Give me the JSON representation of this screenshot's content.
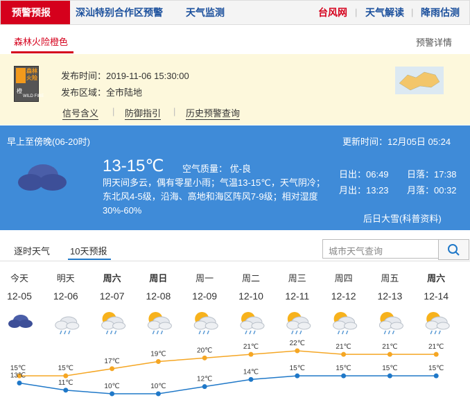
{
  "nav": {
    "tabs": [
      "预警预报",
      "深汕特别合作区预警",
      "天气监测"
    ],
    "links": [
      "台风网",
      "天气解读",
      "降雨估测"
    ]
  },
  "alert": {
    "tab": "森林火险橙色",
    "detail": "预警详情",
    "icon": {
      "title": "森林火险",
      "level": "橙",
      "en": "WILD FIRE"
    },
    "time": "发布时间：2019-11-06 15:30:00",
    "area": "发布区域：全市陆地",
    "links": [
      "信号含义",
      "防御指引",
      "历史预警查询"
    ]
  },
  "today": {
    "period": "早上至傍晚(06-20时)",
    "updated": "更新时间：12月05日 05:24",
    "temp": "13-15℃",
    "air": "空气质量： 优-良",
    "desc": "阴天间多云，偶有零星小雨；气温13-15℃，天气阴冷；东北风4-5级，沿海、高地和海区阵风7-9级；相对湿度30%-60%",
    "sunrise": "日出：06:49",
    "sunset": "日落：17:38",
    "moonrise": "月出：13:23",
    "moonset": "月落：00:32",
    "solar_term": "后日大雪(科普资料)"
  },
  "forecast": {
    "tabs": [
      "逐时天气",
      "10天预报"
    ],
    "search_placeholder": "城市天气查询",
    "weekdays": [
      "今天",
      "明天",
      "周六",
      "周日",
      "周一",
      "周二",
      "周三",
      "周四",
      "周五",
      "周六"
    ],
    "dates": [
      "12-05",
      "12-06",
      "12-07",
      "12-08",
      "12-09",
      "12-10",
      "12-11",
      "12-12",
      "12-13",
      "12-14"
    ]
  },
  "chart_data": {
    "type": "line",
    "categories": [
      "12-05",
      "12-06",
      "12-07",
      "12-08",
      "12-09",
      "12-10",
      "12-11",
      "12-12",
      "12-13",
      "12-14"
    ],
    "series": [
      {
        "color": "#f5a623",
        "values": [
          15,
          15,
          17,
          19,
          20,
          21,
          22,
          21,
          21,
          21
        ],
        "value_labels": [
          "15℃",
          "15℃",
          "17℃",
          "19℃",
          "20℃",
          "21℃",
          "22℃",
          "21℃",
          "21℃",
          "21℃"
        ]
      },
      {
        "color": "#1f78c8",
        "values": [
          13,
          11,
          10,
          10,
          12,
          14,
          15,
          15,
          15,
          15
        ],
        "value_labels": [
          "13℃",
          "11℃",
          "10℃",
          "10℃",
          "12℃",
          "14℃",
          "15℃",
          "15℃",
          "15℃",
          "15℃"
        ]
      }
    ]
  }
}
